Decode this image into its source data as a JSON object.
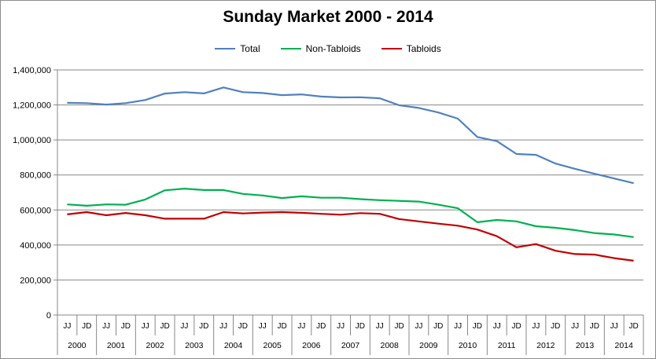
{
  "chart_data": {
    "type": "line",
    "title": "Sunday Market 2000 - 2014",
    "xlabel": "",
    "ylabel": "",
    "ylim": [
      0,
      1400000
    ],
    "yticks": [
      "1,400,000",
      "1,200,000",
      "1,000,000",
      "800,000",
      "600,000",
      "400,000",
      "200,000",
      "0"
    ],
    "ytick_values": [
      1400000,
      1200000,
      1000000,
      800000,
      600000,
      400000,
      200000,
      0
    ],
    "legend_position": "top-center",
    "grid": "horizontal",
    "years": [
      "2000",
      "2001",
      "2002",
      "2003",
      "2004",
      "2005",
      "2006",
      "2007",
      "2008",
      "2009",
      "2010",
      "2011",
      "2012",
      "2013",
      "2014"
    ],
    "periods": [
      "JJ",
      "JD"
    ],
    "x": [
      "JJ 2000",
      "JD 2000",
      "JJ 2001",
      "JD 2001",
      "JJ 2002",
      "JD 2002",
      "JJ 2003",
      "JD 2003",
      "JJ 2004",
      "JD 2004",
      "JJ 2005",
      "JD 2005",
      "JJ 2006",
      "JD 2006",
      "JJ 2007",
      "JD 2007",
      "JJ 2008",
      "JD 2008",
      "JJ 2009",
      "JD 2009",
      "JJ 2010",
      "JD 2010",
      "JJ 2011",
      "JD 2011",
      "JJ 2012",
      "JD 2012",
      "JJ 2013",
      "JD 2013",
      "JJ 2014",
      "JD 2014"
    ],
    "series": [
      {
        "name": "Total",
        "color": "#4f81bd",
        "values": [
          1212000,
          1210000,
          1202000,
          1210000,
          1228000,
          1265000,
          1273000,
          1266000,
          1300000,
          1273000,
          1268000,
          1256000,
          1260000,
          1248000,
          1243000,
          1244000,
          1238000,
          1198000,
          1183000,
          1157000,
          1122000,
          1017000,
          993000,
          920000,
          915000,
          865000,
          835000,
          807000,
          780000,
          753000
        ]
      },
      {
        "name": "Non-Tabloids",
        "color": "#00b050",
        "values": [
          632000,
          624000,
          632000,
          630000,
          660000,
          712000,
          722000,
          714000,
          714000,
          692000,
          683000,
          668000,
          678000,
          670000,
          670000,
          662000,
          656000,
          652000,
          648000,
          630000,
          610000,
          530000,
          543000,
          535000,
          507000,
          498000,
          485000,
          468000,
          460000,
          445000
        ]
      },
      {
        "name": "Tabloids",
        "color": "#c00000",
        "values": [
          575000,
          588000,
          570000,
          583000,
          570000,
          550000,
          550000,
          550000,
          588000,
          580000,
          585000,
          588000,
          584000,
          578000,
          573000,
          582000,
          578000,
          548000,
          535000,
          522000,
          510000,
          488000,
          450000,
          387000,
          405000,
          367000,
          348000,
          345000,
          325000,
          310000
        ]
      }
    ]
  }
}
